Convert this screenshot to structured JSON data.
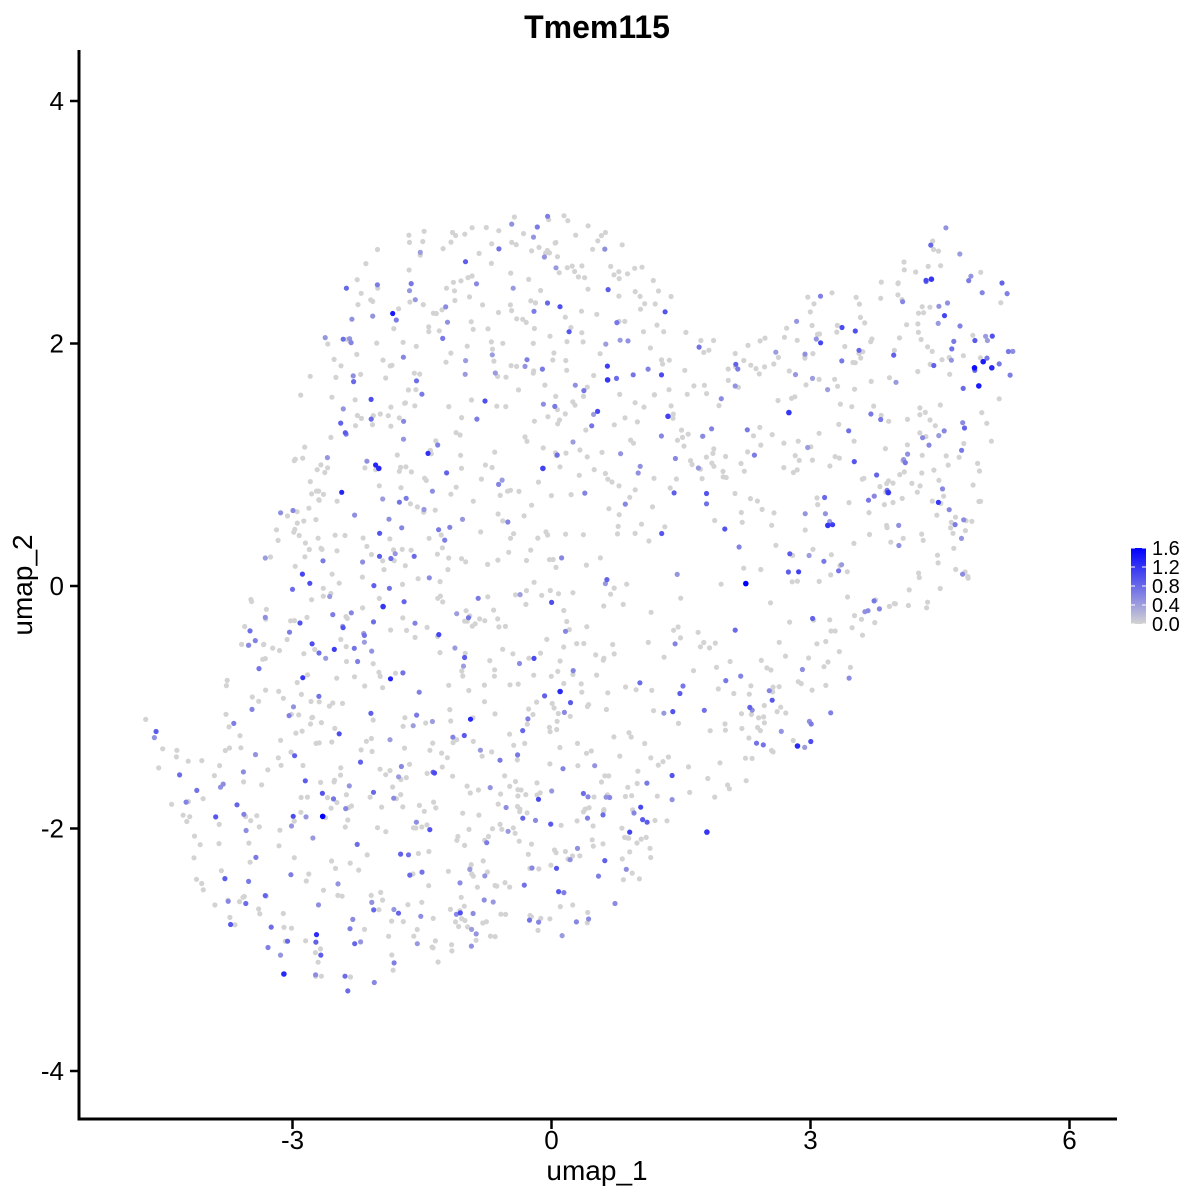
{
  "chart_data": {
    "type": "scatter",
    "title": "Tmem115",
    "xlabel": "umap_1",
    "ylabel": "umap_2",
    "xlim": [
      -5.4,
      6.6
    ],
    "ylim": [
      -4.4,
      4.4
    ],
    "x_ticks": [
      -3,
      0,
      3,
      6
    ],
    "y_ticks": [
      -4,
      -2,
      0,
      2,
      4
    ],
    "x_tick_labels": [
      "-3",
      "0",
      "3",
      "6"
    ],
    "y_tick_labels": [
      "-4",
      "-2",
      "0",
      "2",
      "4"
    ],
    "grid": false,
    "legend": {
      "placement": "right",
      "type": "colorbar",
      "min": 0.0,
      "max": 1.6,
      "ticks": [
        0.0,
        0.4,
        0.8,
        1.2,
        1.6
      ],
      "tick_labels": [
        "0.0",
        "0.4",
        "0.8",
        "1.2",
        "1.6"
      ],
      "low_color": "#d3d3d3",
      "high_color": "#0000ff"
    },
    "highlight_points": [
      {
        "x": 2.25,
        "y": 0.02,
        "value": 1.6
      },
      {
        "x": -2.65,
        "y": -1.9,
        "value": 1.6
      },
      {
        "x": 4.9,
        "y": 1.8,
        "value": 1.5
      },
      {
        "x": 5.0,
        "y": 1.85,
        "value": 1.4
      },
      {
        "x": 4.95,
        "y": 1.65,
        "value": 1.4
      },
      {
        "x": 5.1,
        "y": 1.8,
        "value": 1.3
      },
      {
        "x": 0.65,
        "y": 1.7,
        "value": 1.2
      },
      {
        "x": -2.0,
        "y": 0.97,
        "value": 1.3
      },
      {
        "x": 0.1,
        "y": -0.87,
        "value": 1.3
      },
      {
        "x": -3.1,
        "y": -3.2,
        "value": 1.3
      },
      {
        "x": 2.85,
        "y": -1.32,
        "value": 1.3
      },
      {
        "x": 3.2,
        "y": 0.5,
        "value": 1.2
      },
      {
        "x": 3.9,
        "y": 0.77,
        "value": 1.2
      },
      {
        "x": -1.95,
        "y": -0.17,
        "value": 1.2
      },
      {
        "x": 1.8,
        "y": -2.03,
        "value": 1.2
      },
      {
        "x": 4.4,
        "y": 2.53,
        "value": 1.2
      },
      {
        "x": 2.75,
        "y": 1.43,
        "value": 1.2
      },
      {
        "x": -0.1,
        "y": 0.97,
        "value": 1.1
      },
      {
        "x": 1.35,
        "y": 1.4,
        "value": 1.1
      }
    ],
    "n_points_approx": 1600,
    "point_color_scale": "expression level (grey to blue)"
  }
}
